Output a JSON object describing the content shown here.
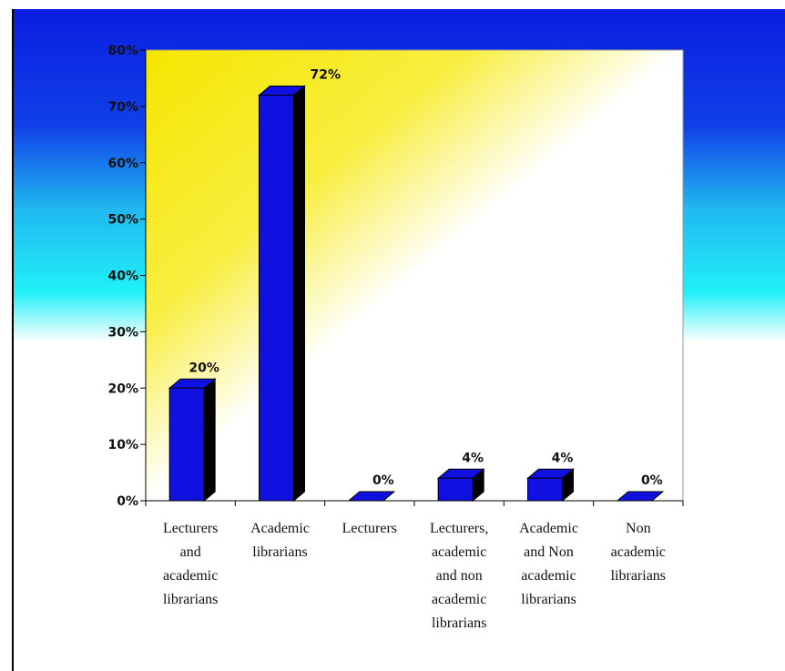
{
  "chart_data": {
    "type": "bar",
    "categories": [
      "Lecturers\nand\nacademic\nlibrarians",
      "Academic\nlibrarians",
      "Lecturers",
      "Lecturers,\nacademic\nand non\nacademic\nlibrarians",
      "Academic\nand Non\nacademic\nlibrarians",
      "Non\nacademic\nlibrarians"
    ],
    "values": [
      20,
      72,
      0,
      4,
      4,
      0
    ],
    "value_labels": [
      "20%",
      "72%",
      "0%",
      "4%",
      "4%",
      "0%"
    ],
    "color": "#1010e0",
    "ylim": [
      0,
      80
    ],
    "yticks": [
      {
        "value": 0,
        "label": "0%"
      },
      {
        "value": 10,
        "label": "10%"
      },
      {
        "value": 20,
        "label": "20%"
      },
      {
        "value": 30,
        "label": "30%"
      },
      {
        "value": 40,
        "label": "40%"
      },
      {
        "value": 50,
        "label": "50%"
      },
      {
        "value": 60,
        "label": "60%"
      },
      {
        "value": 70,
        "label": "70%"
      },
      {
        "value": 80,
        "label": "80%"
      }
    ]
  }
}
